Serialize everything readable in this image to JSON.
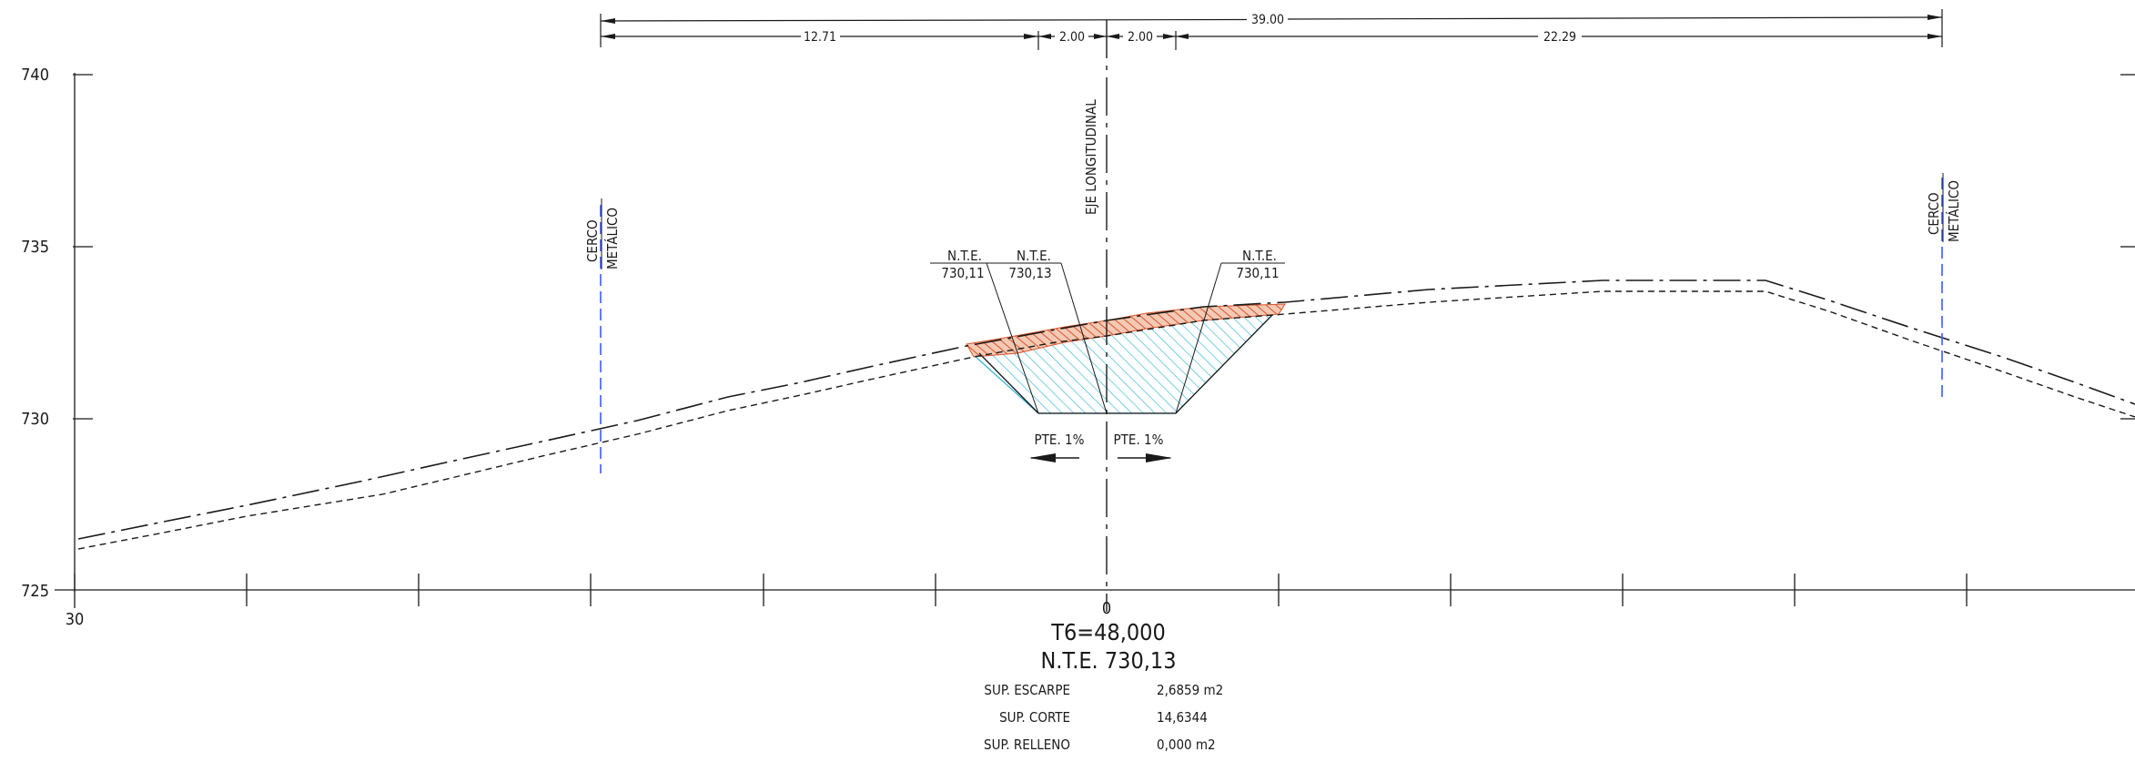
{
  "dimensions": {
    "total": "39.00",
    "left": "12.71",
    "center_left": "2.00",
    "center_right": "2.00",
    "right": "22.29"
  },
  "elevation_ticks": [
    "740",
    "735",
    "730",
    "725"
  ],
  "x_ticks": {
    "start": "30",
    "axis": "0"
  },
  "labels": {
    "axis": "EJE LONGITUDINAL",
    "fence_left": [
      "CERCO",
      "METÁLICO"
    ],
    "fence_right": [
      "CERCO",
      "METÁLICO"
    ],
    "nte_1": [
      "N.T.E.",
      "730,11"
    ],
    "nte_2": [
      "N.T.E.",
      "730,13"
    ],
    "nte_3": [
      "N.T.E.",
      "730,11"
    ],
    "slope_left": "PTE. 1%",
    "slope_right": "PTE. 1%"
  },
  "section": {
    "station": "T6=48,000",
    "level": "N.T.E. 730,13",
    "rows": [
      {
        "label": "SUP. ESCARPE",
        "value": "2,6859  m2"
      },
      {
        "label": "SUP. CORTE",
        "value": "14,6344"
      },
      {
        "label": "SUP. RELLENO",
        "value": "0,000  m2"
      }
    ]
  },
  "colors": {
    "line": "#1a1a1a",
    "fence": "#3b5bff",
    "cut_hatch": "#33b5d6",
    "strip_hatch": "#e0704a"
  }
}
